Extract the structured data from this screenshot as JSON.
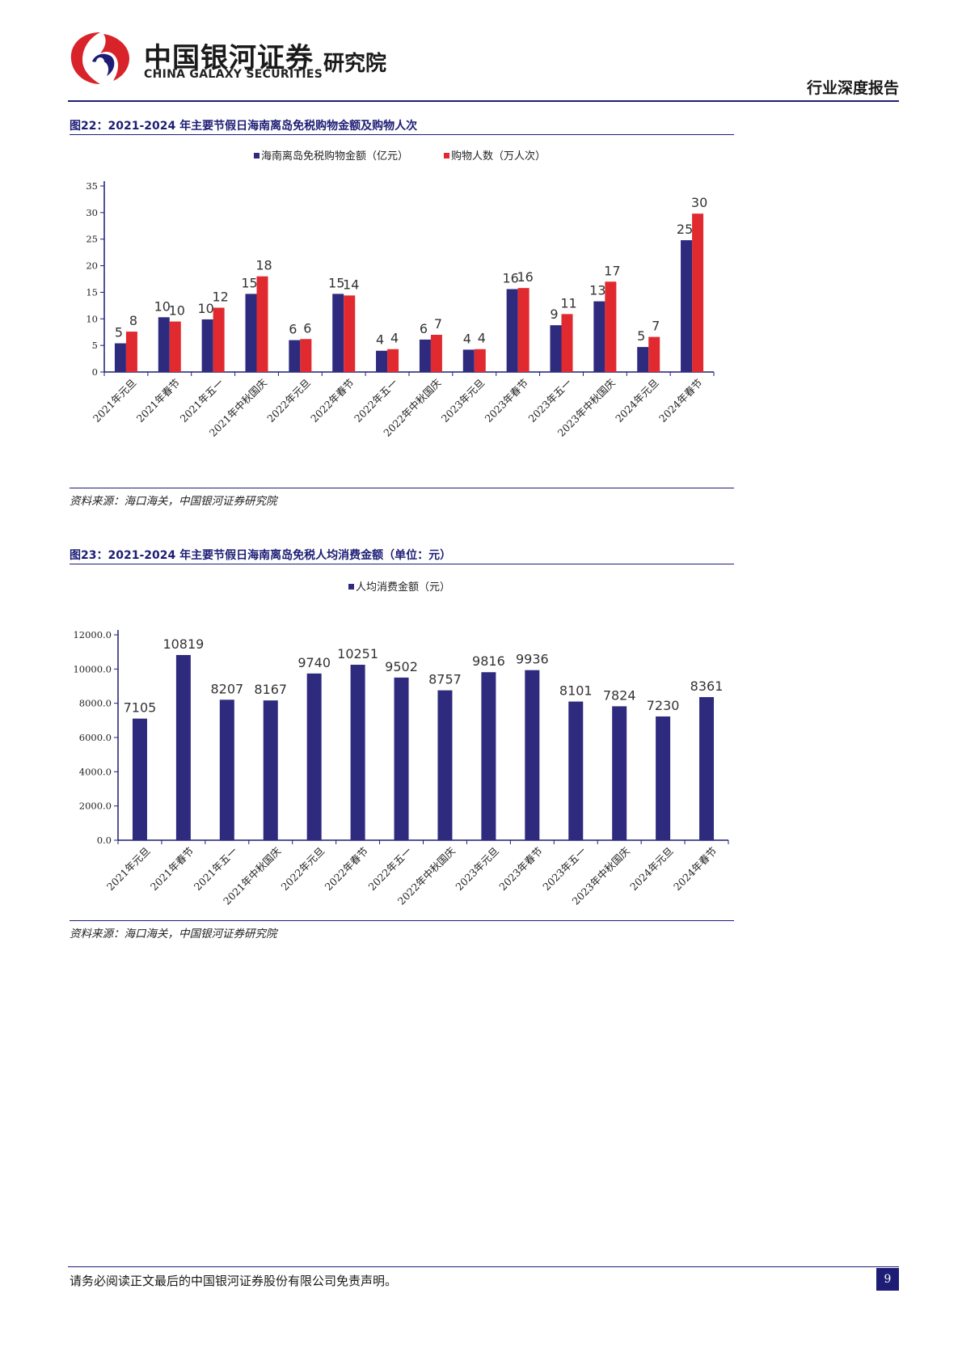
{
  "header": {
    "brand_cn": "中国银河证券",
    "brand_en": "CHINA GALAXY SECURITIES",
    "brand_inst": "研究院",
    "report_type": "行业深度报告",
    "logo_colors": {
      "red": "#d8232a",
      "navy": "#1d1d75"
    }
  },
  "figures": [
    {
      "title": "图22：2021-2024 年主要节假日海南离岛免税购物金额及购物人次",
      "source": "资料来源：海口海关，中国银河证券研究院"
    },
    {
      "title": "图23：2021-2024 年主要节假日海南离岛免税人均消费金额（单位：元）",
      "source": "资料来源：海口海关，中国银河证券研究院"
    }
  ],
  "chart_data": [
    {
      "type": "bar",
      "categories": [
        "2021年元旦",
        "2021年春节",
        "2021年五一",
        "2021年中秋国庆",
        "2022年元旦",
        "2022年春节",
        "2022年五一",
        "2022年中秋国庆",
        "2023年元旦",
        "2023年春节",
        "2023年五一",
        "2023年中秋国庆",
        "2024年元旦",
        "2024年春节"
      ],
      "series": [
        {
          "name": "海南离岛免税购物金额（亿元）",
          "color": "#2e2a7e",
          "values": [
            5.4,
            10.3,
            9.9,
            14.7,
            6.0,
            14.7,
            4.0,
            6.1,
            4.2,
            15.6,
            8.8,
            13.3,
            4.7,
            24.8
          ],
          "labels": [
            "5",
            "10",
            "10",
            "15",
            "6",
            "15",
            "4",
            "6",
            "4",
            "16",
            "9",
            "13",
            "5",
            "25"
          ]
        },
        {
          "name": "购物人数（万人次）",
          "color": "#e12a30",
          "values": [
            7.6,
            9.5,
            12.1,
            18.0,
            6.2,
            14.4,
            4.3,
            7.0,
            4.3,
            15.8,
            10.9,
            17.0,
            6.6,
            29.8
          ],
          "labels": [
            "8",
            "10",
            "12",
            "18",
            "6",
            "14",
            "4",
            "7",
            "4",
            "16",
            "11",
            "17",
            "7",
            "30"
          ]
        }
      ],
      "ylim": [
        0,
        35
      ],
      "yticks": [
        "0",
        "5",
        "10",
        "15",
        "20",
        "25",
        "30",
        "35"
      ],
      "legend_position": "top"
    },
    {
      "type": "bar",
      "categories": [
        "2021年元旦",
        "2021年春节",
        "2021年五一",
        "2021年中秋国庆",
        "2022年元旦",
        "2022年春节",
        "2022年五一",
        "2022年中秋国庆",
        "2023年元旦",
        "2023年春节",
        "2023年五一",
        "2023年中秋国庆",
        "2024年元旦",
        "2024年春节"
      ],
      "series": [
        {
          "name": "人均消费金额（元）",
          "color": "#2e2a7e",
          "values": [
            7105,
            10819,
            8207,
            8167,
            9740,
            10251,
            9502,
            8757,
            9816,
            9936,
            8101,
            7824,
            7230,
            8361
          ],
          "labels": [
            "7105",
            "10819",
            "8207",
            "8167",
            "9740",
            "10251",
            "9502",
            "8757",
            "9816",
            "9936",
            "8101",
            "7824",
            "7230",
            "8361"
          ]
        }
      ],
      "ylim": [
        0,
        12000
      ],
      "yticks": [
        "0.0",
        "2000.0",
        "4000.0",
        "6000.0",
        "8000.0",
        "10000.0",
        "12000.0"
      ],
      "legend_position": "top"
    }
  ],
  "footer": {
    "disclaimer": "请务必阅读正文最后的中国银河证券股份有限公司免责声明。",
    "page_number": "9"
  }
}
